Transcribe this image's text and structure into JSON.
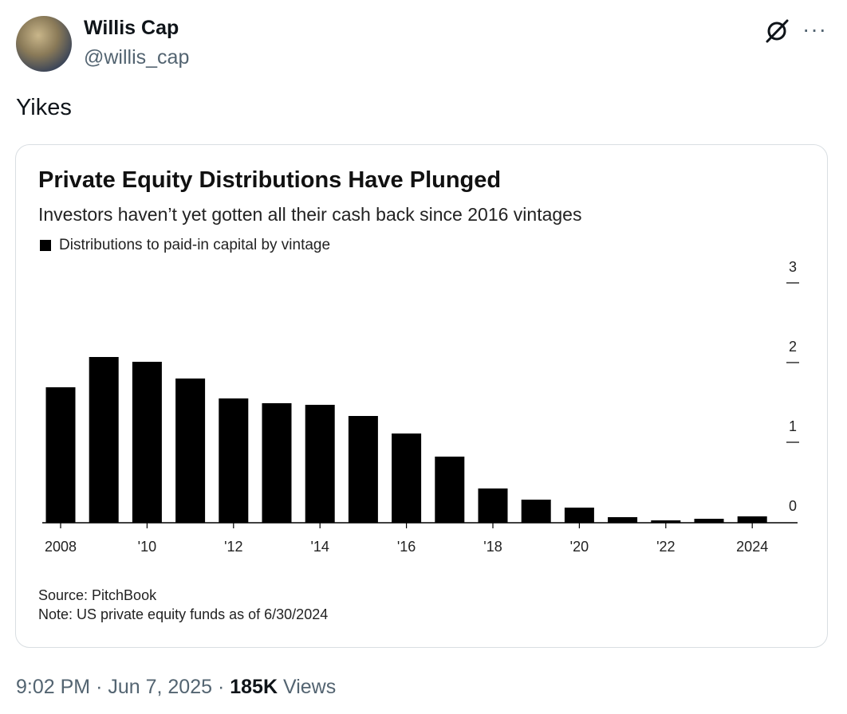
{
  "author": {
    "name": "Willis Cap",
    "handle": "@willis_cap"
  },
  "tweet": {
    "text": "Yikes",
    "time": "9:02 PM",
    "date": "Jun 7, 2025",
    "separator": "·",
    "views_count": "185K",
    "views_label": "Views"
  },
  "icons": {
    "grok": "grok-icon",
    "more": "more-icon"
  },
  "chart_data": {
    "type": "bar",
    "title": "Private Equity Distributions Have Plunged",
    "subtitle": "Investors haven’t yet gotten all their cash back since 2016 vintages",
    "legend": "Distributions to paid-in capital by vintage",
    "series_color": "#000000",
    "categories": [
      "2008",
      "2009",
      "2010",
      "2011",
      "2012",
      "2013",
      "2014",
      "2015",
      "2016",
      "2017",
      "2018",
      "2019",
      "2020",
      "2021",
      "2022",
      "2023",
      "2024"
    ],
    "values": [
      1.7,
      2.08,
      2.02,
      1.81,
      1.56,
      1.5,
      1.48,
      1.34,
      1.12,
      0.83,
      0.43,
      0.29,
      0.19,
      0.07,
      0.03,
      0.05,
      0.08
    ],
    "x_tick_labels": [
      {
        "category": "2008",
        "label": "2008"
      },
      {
        "category": "2010",
        "label": "'10"
      },
      {
        "category": "2012",
        "label": "'12"
      },
      {
        "category": "2014",
        "label": "'14"
      },
      {
        "category": "2016",
        "label": "'16"
      },
      {
        "category": "2018",
        "label": "'18"
      },
      {
        "category": "2020",
        "label": "'20"
      },
      {
        "category": "2022",
        "label": "'22"
      },
      {
        "category": "2024",
        "label": "2024"
      }
    ],
    "y_ticks": [
      0,
      1,
      2,
      3
    ],
    "ylim": [
      0,
      3
    ],
    "y_axis_side": "right",
    "xlabel": "",
    "ylabel": "",
    "source": "Source: PitchBook",
    "note": "Note: US private equity funds as of 6/30/2024"
  }
}
